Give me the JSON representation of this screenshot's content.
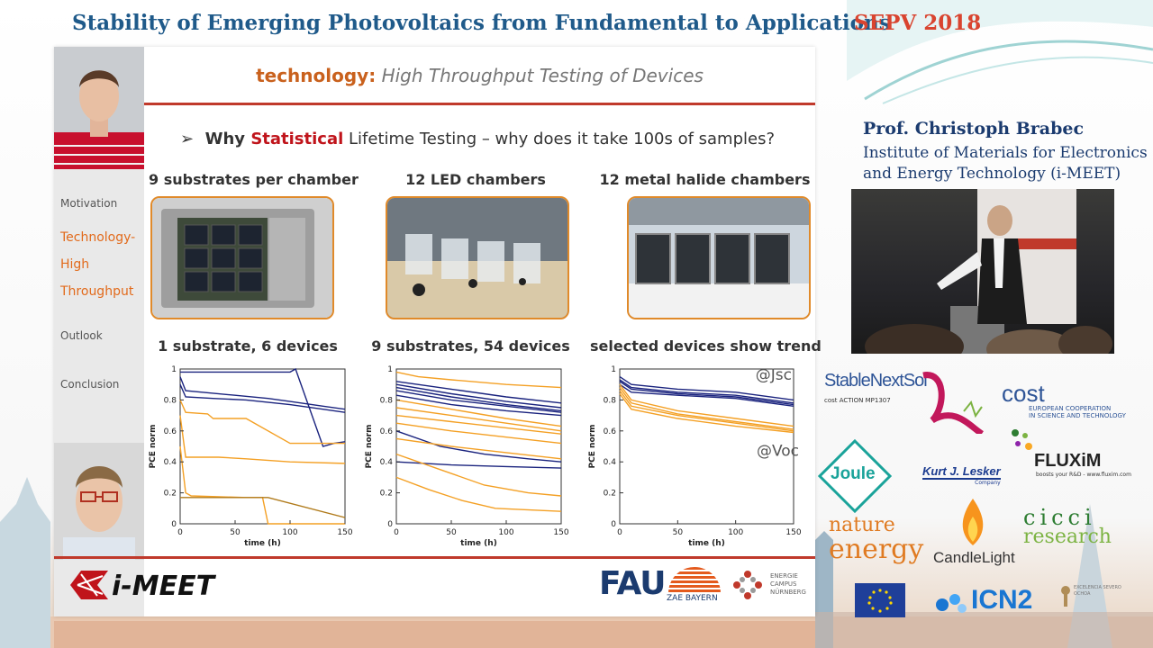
{
  "header": {
    "conference_title": "Stability of Emerging Photovoltaics from Fundamental to Applications",
    "conference_tag": "SEPV 2018"
  },
  "slide": {
    "title_accent": "technology:",
    "title_rest": " High Throughput Testing of Devices",
    "bullet_symbol": "➢",
    "bullet_pre": "Why ",
    "bullet_highlight": "Statistical",
    "bullet_post": " Lifetime Testing – why does it take 100s of samples?",
    "nav": [
      {
        "label": "Motivation",
        "active": false
      },
      {
        "label": "Technology-",
        "active": true
      },
      {
        "label": "High",
        "active": true
      },
      {
        "label": "Throughput",
        "active": true
      },
      {
        "label": "Outlook",
        "active": false
      },
      {
        "label": "Conclusion",
        "active": false
      }
    ],
    "photo_captions": [
      "9 substrates per chamber",
      "12 LED chambers",
      "12 metal halide chambers"
    ],
    "chart_captions": [
      "1 substrate, 6 devices",
      "9 substrates, 54 devices",
      "selected devices show trend"
    ],
    "footer": {
      "imeet": "i-MEET",
      "fau": "FAU",
      "zae": "ZAE BAYERN",
      "energie": [
        "ENERGIE",
        "CAMPUS",
        "NÜRNBERG"
      ]
    }
  },
  "chart_data": [
    {
      "type": "line",
      "title": "1 substrate, 6 devices",
      "xlabel": "time (h)",
      "ylabel": "PCE norm",
      "xlim": [
        0,
        150
      ],
      "ylim": [
        0,
        1
      ],
      "xticks": [
        0,
        50,
        100,
        150
      ],
      "yticks": [
        "0",
        "0.2",
        "0.4",
        "0.6",
        "0.8",
        "1"
      ],
      "series": [
        {
          "color": "#1a237e",
          "x": [
            0,
            5,
            20,
            50,
            80,
            100,
            130,
            150
          ],
          "y": [
            0.95,
            0.86,
            0.85,
            0.83,
            0.81,
            0.79,
            0.76,
            0.74
          ]
        },
        {
          "color": "#1a237e",
          "x": [
            0,
            5,
            30,
            60,
            100,
            130,
            150
          ],
          "y": [
            0.9,
            0.82,
            0.81,
            0.8,
            0.77,
            0.74,
            0.72
          ]
        },
        {
          "color": "#1a237e",
          "x": [
            0,
            100,
            105,
            130,
            140,
            150
          ],
          "y": [
            0.98,
            0.98,
            1.0,
            0.5,
            0.52,
            0.53
          ]
        },
        {
          "color": "#f4a024",
          "x": [
            0,
            5,
            25,
            30,
            60,
            100,
            150
          ],
          "y": [
            0.8,
            0.72,
            0.71,
            0.68,
            0.68,
            0.52,
            0.52
          ]
        },
        {
          "color": "#f4a024",
          "x": [
            0,
            5,
            30,
            35,
            60,
            100,
            150
          ],
          "y": [
            0.7,
            0.43,
            0.43,
            0.43,
            0.42,
            0.4,
            0.39
          ]
        },
        {
          "color": "#f4a024",
          "x": [
            0,
            5,
            10,
            60,
            75,
            80,
            150
          ],
          "y": [
            0.5,
            0.2,
            0.18,
            0.17,
            0.17,
            0.0,
            0.0
          ]
        },
        {
          "color": "#b07a1a",
          "x": [
            0,
            10,
            80,
            150
          ],
          "y": [
            0.17,
            0.17,
            0.17,
            0.04
          ]
        }
      ]
    },
    {
      "type": "line",
      "title": "9 substrates, 54 devices",
      "xlabel": "time (h)",
      "ylabel": "PCE norm",
      "xlim": [
        0,
        150
      ],
      "ylim": [
        0,
        1
      ],
      "xticks": [
        0,
        50,
        100,
        150
      ],
      "yticks": [
        "0",
        "0.2",
        "0.4",
        "0.6",
        "0.8",
        "1"
      ],
      "series": [
        {
          "color": "#1a237e",
          "x": [
            0,
            50,
            100,
            150
          ],
          "y": [
            0.92,
            0.87,
            0.82,
            0.78
          ]
        },
        {
          "color": "#1a237e",
          "x": [
            0,
            50,
            100,
            150
          ],
          "y": [
            0.9,
            0.84,
            0.79,
            0.75
          ]
        },
        {
          "color": "#1a237e",
          "x": [
            0,
            50,
            100,
            150
          ],
          "y": [
            0.88,
            0.82,
            0.77,
            0.73
          ]
        },
        {
          "color": "#1a237e",
          "x": [
            0,
            50,
            100,
            150
          ],
          "y": [
            0.86,
            0.8,
            0.76,
            0.72
          ]
        },
        {
          "color": "#1a237e",
          "x": [
            0,
            50,
            100,
            150
          ],
          "y": [
            0.83,
            0.77,
            0.73,
            0.7
          ]
        },
        {
          "color": "#1a237e",
          "x": [
            0,
            50,
            100,
            150
          ],
          "y": [
            0.4,
            0.38,
            0.37,
            0.36
          ]
        },
        {
          "color": "#1a237e",
          "x": [
            0,
            40,
            80,
            120,
            150
          ],
          "y": [
            0.6,
            0.5,
            0.45,
            0.42,
            0.4
          ]
        },
        {
          "color": "#f4a024",
          "x": [
            0,
            50,
            100,
            150
          ],
          "y": [
            0.8,
            0.74,
            0.68,
            0.63
          ]
        },
        {
          "color": "#f4a024",
          "x": [
            0,
            50,
            100,
            150
          ],
          "y": [
            0.75,
            0.7,
            0.65,
            0.6
          ]
        },
        {
          "color": "#f4a024",
          "x": [
            0,
            50,
            100,
            150
          ],
          "y": [
            0.7,
            0.66,
            0.62,
            0.58
          ]
        },
        {
          "color": "#f4a024",
          "x": [
            0,
            50,
            100,
            150
          ],
          "y": [
            0.65,
            0.6,
            0.56,
            0.52
          ]
        },
        {
          "color": "#f4a024",
          "x": [
            0,
            50,
            100,
            150
          ],
          "y": [
            0.55,
            0.5,
            0.46,
            0.42
          ]
        },
        {
          "color": "#f4a024",
          "x": [
            0,
            40,
            80,
            120,
            150
          ],
          "y": [
            0.45,
            0.35,
            0.25,
            0.2,
            0.18
          ]
        },
        {
          "color": "#f4a024",
          "x": [
            0,
            30,
            60,
            90,
            150
          ],
          "y": [
            0.3,
            0.22,
            0.15,
            0.1,
            0.08
          ]
        },
        {
          "color": "#f4a024",
          "x": [
            0,
            20,
            50,
            100,
            150
          ],
          "y": [
            0.98,
            0.95,
            0.93,
            0.9,
            0.88
          ]
        }
      ]
    },
    {
      "type": "line",
      "title": "selected devices show trend",
      "xlabel": "time (h)",
      "ylabel": "PCE norm",
      "xlim": [
        0,
        150
      ],
      "ylim": [
        0,
        1
      ],
      "xticks": [
        0,
        50,
        100,
        150
      ],
      "yticks": [
        "0",
        "0.2",
        "0.4",
        "0.6",
        "0.8",
        "1"
      ],
      "annotations": [
        "@Jsc",
        "@Voc"
      ],
      "series": [
        {
          "color": "#1a237e",
          "x": [
            0,
            10,
            50,
            100,
            150
          ],
          "y": [
            0.95,
            0.9,
            0.87,
            0.85,
            0.8
          ]
        },
        {
          "color": "#1a237e",
          "x": [
            0,
            10,
            50,
            100,
            150
          ],
          "y": [
            0.93,
            0.88,
            0.85,
            0.83,
            0.78
          ]
        },
        {
          "color": "#1a237e",
          "x": [
            0,
            10,
            50,
            100,
            150
          ],
          "y": [
            0.92,
            0.87,
            0.84,
            0.82,
            0.77
          ]
        },
        {
          "color": "#1a237e",
          "x": [
            0,
            10,
            50,
            100,
            150
          ],
          "y": [
            0.9,
            0.85,
            0.83,
            0.81,
            0.76
          ]
        },
        {
          "color": "#f4a024",
          "x": [
            0,
            10,
            50,
            100,
            150
          ],
          "y": [
            0.9,
            0.8,
            0.73,
            0.68,
            0.63
          ]
        },
        {
          "color": "#f4a024",
          "x": [
            0,
            10,
            50,
            100,
            150
          ],
          "y": [
            0.88,
            0.78,
            0.71,
            0.66,
            0.61
          ]
        },
        {
          "color": "#f4a024",
          "x": [
            0,
            10,
            50,
            100,
            150
          ],
          "y": [
            0.86,
            0.76,
            0.7,
            0.65,
            0.6
          ]
        },
        {
          "color": "#f4a024",
          "x": [
            0,
            10,
            50,
            100,
            150
          ],
          "y": [
            0.84,
            0.74,
            0.68,
            0.63,
            0.59
          ]
        }
      ]
    }
  ],
  "speaker": {
    "name": "Prof. Christoph Brabec",
    "affiliation_line1": "Institute of Materials for Electronics",
    "affiliation_line2": "and Energy Technology (i-MEET)"
  },
  "sponsors": {
    "stablenextsol": "StableNextSol",
    "stablenextsol_sub": "cost ACTION MP1307",
    "cost": "cost",
    "cost_sub1": "EUROPEAN COOPERATION",
    "cost_sub2": "IN SCIENCE AND TECHNOLOGY",
    "joule": "Joule",
    "lesker": "Kurt J. Lesker",
    "lesker_sub": "Company",
    "fluxim": "FLUXiM",
    "fluxim_sub": "boosts your R&D - www.fluxim.com",
    "nature1": "nature",
    "nature2": "energy",
    "candlelight": "CandleLight",
    "cicci1": "cicci",
    "cicci2": "research",
    "icn2": "ICN2",
    "severo": "EXCELENCIA SEVERO OCHOA"
  },
  "colors": {
    "title_blue": "#1f5a8a",
    "accent_red": "#d9442f",
    "accent_orange": "#e26a1b",
    "series_blue": "#1a237e",
    "series_orange": "#f4a024"
  }
}
